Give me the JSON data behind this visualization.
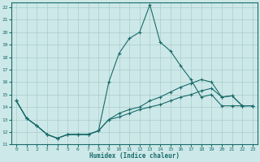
{
  "xlabel": "Humidex (Indice chaleur)",
  "bg_color": "#cde8e8",
  "line_color": "#1a6b6b",
  "grid_color": "#aacccc",
  "xlim": [
    -0.5,
    23.5
  ],
  "ylim": [
    11,
    22.4
  ],
  "xticks": [
    0,
    1,
    2,
    3,
    4,
    5,
    6,
    7,
    8,
    9,
    10,
    11,
    12,
    13,
    14,
    15,
    16,
    17,
    18,
    19,
    20,
    21,
    22,
    23
  ],
  "yticks": [
    11,
    12,
    13,
    14,
    15,
    16,
    17,
    18,
    19,
    20,
    21,
    22
  ],
  "line1_x": [
    0,
    1,
    2,
    3,
    4,
    5,
    6,
    7,
    8,
    9,
    10,
    11,
    12,
    13,
    14,
    15,
    16,
    17,
    18,
    19,
    20,
    21,
    22,
    23
  ],
  "line1_y": [
    14.5,
    13.1,
    12.5,
    11.8,
    11.5,
    11.8,
    11.8,
    11.8,
    12.1,
    16.0,
    18.3,
    19.5,
    20.0,
    22.2,
    19.2,
    18.5,
    17.3,
    16.2,
    14.8,
    15.0,
    14.1,
    14.1,
    14.1,
    14.1
  ],
  "line2_x": [
    0,
    1,
    2,
    3,
    4,
    5,
    6,
    7,
    8,
    9,
    10,
    11,
    12,
    13,
    14,
    15,
    16,
    17,
    18,
    19,
    20,
    21,
    22,
    23
  ],
  "line2_y": [
    14.5,
    13.1,
    12.5,
    11.8,
    11.5,
    11.8,
    11.8,
    11.8,
    12.1,
    13.0,
    13.5,
    13.8,
    14.0,
    14.5,
    14.8,
    15.2,
    15.6,
    15.9,
    16.2,
    16.0,
    14.8,
    14.9,
    14.1,
    14.1
  ],
  "line3_x": [
    0,
    1,
    2,
    3,
    4,
    5,
    6,
    7,
    8,
    9,
    10,
    11,
    12,
    13,
    14,
    15,
    16,
    17,
    18,
    19,
    20,
    21,
    22,
    23
  ],
  "line3_y": [
    14.5,
    13.1,
    12.5,
    11.8,
    11.5,
    11.8,
    11.8,
    11.8,
    12.1,
    13.0,
    13.2,
    13.5,
    13.8,
    14.0,
    14.2,
    14.5,
    14.8,
    15.0,
    15.3,
    15.5,
    14.8,
    14.9,
    14.1,
    14.1
  ]
}
